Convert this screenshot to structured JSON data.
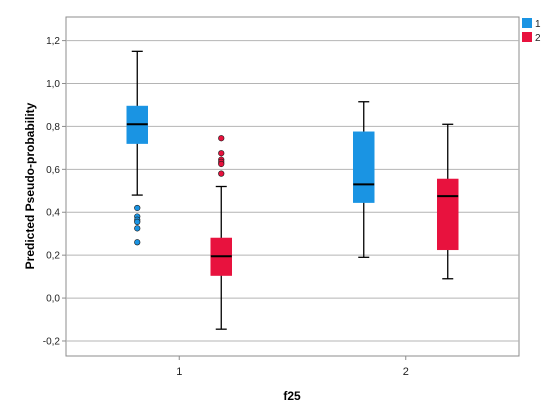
{
  "chart_data": {
    "type": "boxplot",
    "xlabel": "f25",
    "ylabel": "Predicted Pseudo-probability",
    "ylim": [
      -0.27,
      1.31
    ],
    "yticks": [
      -0.2,
      0.0,
      0.2,
      0.4,
      0.6,
      0.8,
      1.0,
      1.2
    ],
    "ytick_labels": [
      "-0,2",
      "0,0",
      "0,2",
      "0,4",
      "0,6",
      "0,8",
      "1,0",
      "1,2"
    ],
    "categories": [
      "1",
      "2"
    ],
    "grid": true,
    "legend_position": "top-right",
    "series": [
      {
        "name": "1",
        "color": "#1a94e3",
        "boxes": [
          {
            "category": "1",
            "whisker_low": 0.48,
            "q1": 0.72,
            "median": 0.81,
            "q3": 0.895,
            "whisker_high": 1.15,
            "outliers": [
              0.42,
              0.38,
              0.365,
              0.355,
              0.325,
              0.26
            ]
          },
          {
            "category": "2",
            "whisker_low": 0.19,
            "q1": 0.445,
            "median": 0.53,
            "q3": 0.775,
            "whisker_high": 0.915,
            "outliers": []
          }
        ]
      },
      {
        "name": "2",
        "color": "#e8123e",
        "boxes": [
          {
            "category": "1",
            "whisker_low": -0.145,
            "q1": 0.105,
            "median": 0.195,
            "q3": 0.28,
            "whisker_high": 0.52,
            "outliers": [
              0.745,
              0.675,
              0.645,
              0.635,
              0.625,
              0.58
            ]
          },
          {
            "category": "2",
            "whisker_low": 0.09,
            "q1": 0.225,
            "median": 0.475,
            "q3": 0.555,
            "whisker_high": 0.81,
            "outliers": []
          }
        ]
      }
    ]
  }
}
